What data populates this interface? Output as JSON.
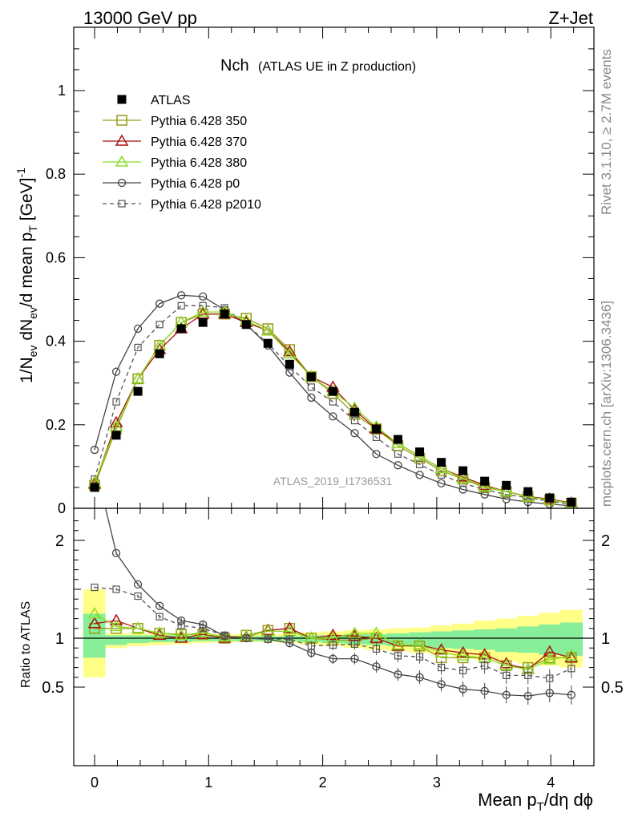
{
  "header": {
    "left": "13000 GeV pp",
    "right": "Z+Jet"
  },
  "side_labels": {
    "top": "Rivet 3.1.10, ≥ 2.7M events",
    "bottom": "mcplots.cern.ch [arXiv:1306.3436]"
  },
  "chart_data": [
    {
      "type": "line",
      "title_main": "Nch",
      "title_sub": "(ATLAS UE in Z production)",
      "watermark": "ATLAS_2019_I1736531",
      "ylabel": "1/N_ev dN_ev/d mean p_T [GeV]^-1",
      "ylim": [
        0,
        1.15
      ],
      "xlim": [
        -0.2,
        4.4
      ],
      "yticks": [
        "0",
        "0.2",
        "0.4",
        "0.6",
        "0.8",
        "1"
      ],
      "x": [
        0.0,
        0.19,
        0.38,
        0.57,
        0.76,
        0.95,
        1.14,
        1.33,
        1.52,
        1.71,
        1.9,
        2.09,
        2.28,
        2.47,
        2.66,
        2.85,
        3.04,
        3.23,
        3.42,
        3.61,
        3.8,
        3.99,
        4.18
      ],
      "legend_position": "top-left",
      "series": [
        {
          "name": "ATLAS",
          "color": "#000000",
          "marker": "square-filled",
          "line": "none",
          "values": [
            0.05,
            0.175,
            0.28,
            0.37,
            0.43,
            0.445,
            0.465,
            0.44,
            0.395,
            0.345,
            0.315,
            0.28,
            0.23,
            0.19,
            0.165,
            0.135,
            0.11,
            0.09,
            0.065,
            0.055,
            0.04,
            0.025,
            0.015
          ]
        },
        {
          "name": "Pythia 6.428 350",
          "color": "#9a9a1a",
          "marker": "square-open",
          "line": "solid",
          "values": [
            0.055,
            0.19,
            0.31,
            0.39,
            0.445,
            0.465,
            0.465,
            0.455,
            0.43,
            0.38,
            0.315,
            0.275,
            0.225,
            0.19,
            0.15,
            0.12,
            0.09,
            0.07,
            0.05,
            0.04,
            0.028,
            0.02,
            0.012
          ]
        },
        {
          "name": "Pythia 6.428 370",
          "color": "#aa1111",
          "marker": "triangle-open",
          "line": "solid",
          "values": [
            0.058,
            0.205,
            0.31,
            0.38,
            0.43,
            0.465,
            0.465,
            0.445,
            0.425,
            0.375,
            0.315,
            0.29,
            0.235,
            0.19,
            0.155,
            0.125,
            0.095,
            0.075,
            0.055,
            0.04,
            0.028,
            0.022,
            0.013
          ]
        },
        {
          "name": "Pythia 6.428 380",
          "color": "#88dd22",
          "marker": "triangle-open",
          "line": "solid",
          "values": [
            0.062,
            0.195,
            0.31,
            0.39,
            0.445,
            0.47,
            0.47,
            0.45,
            0.425,
            0.37,
            0.315,
            0.28,
            0.24,
            0.195,
            0.155,
            0.125,
            0.095,
            0.072,
            0.052,
            0.04,
            0.027,
            0.02,
            0.012
          ]
        },
        {
          "name": "Pythia 6.428 p0",
          "color": "#444444",
          "marker": "circle-open",
          "line": "solid",
          "values": [
            0.14,
            0.327,
            0.43,
            0.49,
            0.51,
            0.507,
            0.475,
            0.44,
            0.39,
            0.325,
            0.265,
            0.22,
            0.18,
            0.13,
            0.103,
            0.08,
            0.06,
            0.045,
            0.033,
            0.022,
            0.015,
            0.01,
            0.006
          ]
        },
        {
          "name": "Pythia 6.428 p2010",
          "color": "#555555",
          "marker": "square-open-small",
          "line": "dashed",
          "values": [
            0.07,
            0.255,
            0.385,
            0.44,
            0.485,
            0.485,
            0.48,
            0.44,
            0.395,
            0.34,
            0.29,
            0.255,
            0.21,
            0.17,
            0.13,
            0.105,
            0.08,
            0.06,
            0.045,
            0.033,
            0.025,
            0.017,
            0.01
          ]
        }
      ]
    },
    {
      "type": "line",
      "ylabel": "Ratio to ATLAS",
      "xlabel": "Mean p_T/dη dφ",
      "ylim": [
        0.35,
        2.25
      ],
      "xlim": [
        -0.2,
        4.4
      ],
      "yticks": [
        "0.5",
        "1",
        "2"
      ],
      "xticks": [
        "0",
        "1",
        "2",
        "3",
        "4"
      ],
      "bands": {
        "yellow_upper": [
          1.5,
          1.05,
          1.05,
          1.05,
          1.05,
          1.05,
          1.04,
          1.04,
          1.04,
          1.05,
          1.06,
          1.07,
          1.08,
          1.09,
          1.1,
          1.11,
          1.13,
          1.15,
          1.18,
          1.2,
          1.23,
          1.26,
          1.29
        ],
        "yellow_lower": [
          0.6,
          0.9,
          0.92,
          0.93,
          0.94,
          0.95,
          0.96,
          0.96,
          0.96,
          0.95,
          0.93,
          0.92,
          0.9,
          0.88,
          0.87,
          0.85,
          0.83,
          0.8,
          0.78,
          0.76,
          0.74,
          0.72,
          0.7
        ],
        "green_upper": [
          1.25,
          1.03,
          1.03,
          1.03,
          1.03,
          1.03,
          1.02,
          1.02,
          1.02,
          1.02,
          1.03,
          1.03,
          1.04,
          1.04,
          1.05,
          1.06,
          1.07,
          1.08,
          1.09,
          1.1,
          1.12,
          1.14,
          1.16
        ],
        "green_lower": [
          0.8,
          0.93,
          0.95,
          0.96,
          0.96,
          0.97,
          0.97,
          0.97,
          0.97,
          0.97,
          0.96,
          0.95,
          0.94,
          0.93,
          0.92,
          0.91,
          0.9,
          0.89,
          0.88,
          0.86,
          0.85,
          0.83,
          0.82
        ]
      },
      "series": [
        {
          "name": "Pythia 6.428 350",
          "color": "#9a9a1a",
          "marker": "square-open",
          "line": "solid",
          "values": [
            1.1,
            1.1,
            1.1,
            1.05,
            1.04,
            1.04,
            1.0,
            1.03,
            1.08,
            1.1,
            1.0,
            0.98,
            0.98,
            1.0,
            0.92,
            0.92,
            0.8,
            0.8,
            0.8,
            0.72,
            0.7,
            0.8,
            0.8
          ]
        },
        {
          "name": "Pythia 6.428 370",
          "color": "#aa1111",
          "marker": "triangle-open",
          "line": "solid",
          "values": [
            1.15,
            1.18,
            1.1,
            1.03,
            1.0,
            1.04,
            1.0,
            1.01,
            1.08,
            1.1,
            1.0,
            1.03,
            1.02,
            1.0,
            0.92,
            0.93,
            0.88,
            0.85,
            0.83,
            0.74,
            0.68,
            0.86,
            0.8
          ]
        },
        {
          "name": "Pythia 6.428 380",
          "color": "#88dd22",
          "marker": "triangle-open",
          "line": "solid",
          "values": [
            1.25,
            1.12,
            1.1,
            1.05,
            1.03,
            1.06,
            1.01,
            1.02,
            1.07,
            1.07,
            1.0,
            1.0,
            1.05,
            1.05,
            0.93,
            0.93,
            0.85,
            0.82,
            0.8,
            0.72,
            0.68,
            0.78,
            0.82
          ]
        },
        {
          "name": "Pythia 6.428 p0",
          "color": "#444444",
          "marker": "circle-open",
          "line": "solid",
          "values": [
            2.8,
            1.87,
            1.55,
            1.33,
            1.18,
            1.14,
            1.02,
            1.0,
            0.99,
            0.95,
            0.85,
            0.79,
            0.79,
            0.71,
            0.63,
            0.6,
            0.53,
            0.48,
            0.46,
            0.42,
            0.41,
            0.44,
            0.42
          ]
        },
        {
          "name": "Pythia 6.428 p2010",
          "color": "#555555",
          "marker": "square-open-small",
          "line": "dashed",
          "values": [
            1.52,
            1.5,
            1.43,
            1.22,
            1.13,
            1.1,
            1.03,
            1.0,
            0.99,
            0.99,
            0.92,
            0.93,
            0.94,
            0.89,
            0.82,
            0.81,
            0.7,
            0.67,
            0.72,
            0.62,
            0.62,
            0.59,
            0.69
          ]
        }
      ]
    }
  ]
}
